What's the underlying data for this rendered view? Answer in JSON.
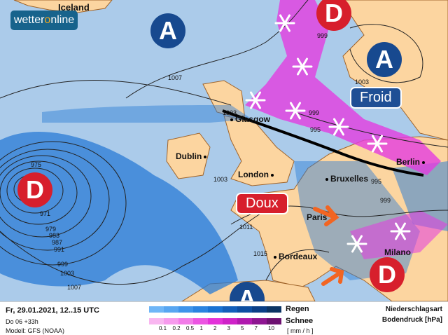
{
  "logo": {
    "text_pre": "wetter",
    "text_o": "o",
    "text_post": "nline"
  },
  "cities": [
    "Iceland",
    "Glasgow",
    "Dublin",
    "London",
    "Bruxelles",
    "Berlin",
    "Paris",
    "Bordeaux",
    "Milano"
  ],
  "pressure_centers": {
    "high": "A",
    "low": "D"
  },
  "isobars": [
    "1007",
    "999",
    "1003",
    "975",
    "971",
    "979",
    "983",
    "987",
    "991",
    "999",
    "1003",
    "1007",
    "1003",
    "995",
    "999",
    "1011",
    "1015",
    "995",
    "999",
    "1003"
  ],
  "labels": {
    "cold": "Froid",
    "warm": "Doux"
  },
  "colors": {
    "sea": "#abcbea",
    "land": "#fcd5a0",
    "high": "#17498f",
    "low": "#d71f2c",
    "rain": "#2a7bd6",
    "snow": "#e33ce0",
    "warm_arrow": "#f26522"
  },
  "footer": {
    "datetime": "Fr, 29.01.2021, 12..15 UTC",
    "run": "Do 06 +33h",
    "model": "Modell: GFS (NOAA)",
    "rain_label": "Regen",
    "snow_label": "Schnee",
    "unit": "[ mm / h ]",
    "type_label": "Niederschlagsart",
    "pressure_label": "Bodendruck [hPa]",
    "ticks": [
      "0.1",
      "0.2",
      "0.5",
      "1",
      "2",
      "3",
      "5",
      "7",
      "10"
    ],
    "rain_colors": [
      "#6fb6f7",
      "#58a6f1",
      "#3f94ea",
      "#2b83e0",
      "#1a72d2",
      "#135fba",
      "#0d4fa2",
      "#0a3f86",
      "#0b3463"
    ],
    "snow_colors": [
      "#f9b6f0",
      "#f79aed",
      "#f27be8",
      "#ec55e2",
      "#e332d9",
      "#cf22c8",
      "#b01aae",
      "#8e1591",
      "#6d1170"
    ]
  }
}
